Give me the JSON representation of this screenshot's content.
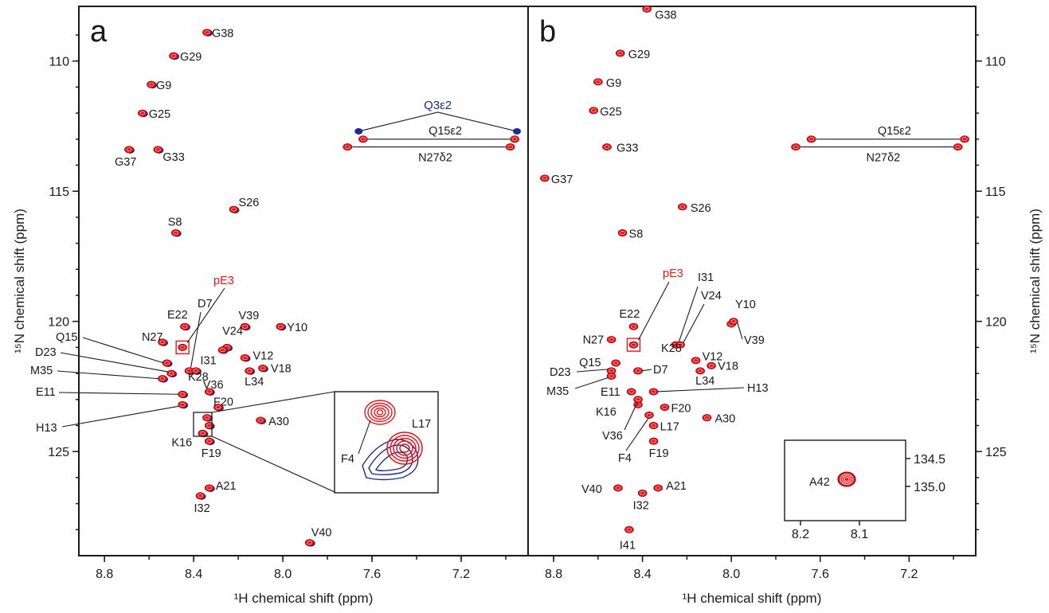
{
  "chart_data": [
    {
      "type": "scatter",
      "panel_label": "a",
      "xlabel": "¹H chemical shift (ppm)",
      "ylabel": "¹⁵N chemical shift (ppm)",
      "x_ticks": [
        "8.8",
        "8.4",
        "8.0",
        "7.6",
        "7.2"
      ],
      "y_ticks": [
        "110",
        "115",
        "120",
        "125"
      ],
      "xlim": [
        8.915,
        6.9
      ],
      "ylim": [
        107.9,
        129.0
      ],
      "colors": {
        "red": "#e8161b",
        "blue": "#1d2b8f"
      },
      "peaks": [
        {
          "label": "G38",
          "x": 8.34,
          "y": 108.9
        },
        {
          "label": "G29",
          "x": 8.49,
          "y": 109.8
        },
        {
          "label": "G9",
          "x": 8.59,
          "y": 110.9
        },
        {
          "label": "G25",
          "x": 8.63,
          "y": 112.0
        },
        {
          "label": "G37",
          "x": 8.69,
          "y": 113.4
        },
        {
          "label": "G33",
          "x": 8.56,
          "y": 113.4
        },
        {
          "label": "S26",
          "x": 8.22,
          "y": 115.7
        },
        {
          "label": "S8",
          "x": 8.48,
          "y": 116.6
        },
        {
          "label": "E22",
          "x": 8.44,
          "y": 120.2
        },
        {
          "label": "N27",
          "x": 8.54,
          "y": 120.8
        },
        {
          "label": "pE3",
          "x": 8.45,
          "y": 121.0
        },
        {
          "label": "D7",
          "x": 8.42,
          "y": 121.9
        },
        {
          "label": "V39",
          "x": 8.17,
          "y": 120.2
        },
        {
          "label": "Y10",
          "x": 8.01,
          "y": 120.2
        },
        {
          "label": "V24",
          "x": 8.25,
          "y": 121.0
        },
        {
          "label": "I31",
          "x": 8.27,
          "y": 121.1
        },
        {
          "label": "V12",
          "x": 8.17,
          "y": 121.4
        },
        {
          "label": "V18",
          "x": 8.09,
          "y": 121.8
        },
        {
          "label": "L34",
          "x": 8.15,
          "y": 121.9
        },
        {
          "label": "D23",
          "x": 8.5,
          "y": 122.0
        },
        {
          "label": "Q15",
          "x": 8.52,
          "y": 121.6
        },
        {
          "label": "M35",
          "x": 8.54,
          "y": 122.2
        },
        {
          "label": "K28",
          "x": 8.39,
          "y": 121.9
        },
        {
          "label": "E11",
          "x": 8.45,
          "y": 122.8
        },
        {
          "label": "V36",
          "x": 8.33,
          "y": 122.7
        },
        {
          "label": "F20",
          "x": 8.29,
          "y": 123.3
        },
        {
          "label": "H13",
          "x": 8.45,
          "y": 123.2
        },
        {
          "label": "K16",
          "x": 8.36,
          "y": 124.3
        },
        {
          "label": "F4",
          "x": 8.34,
          "y": 123.7
        },
        {
          "label": "L17",
          "x": 8.33,
          "y": 124.0
        },
        {
          "label": "A30",
          "x": 8.1,
          "y": 123.8
        },
        {
          "label": "F19",
          "x": 8.33,
          "y": 124.6
        },
        {
          "label": "A21",
          "x": 8.33,
          "y": 126.4
        },
        {
          "label": "I32",
          "x": 8.37,
          "y": 126.7
        },
        {
          "label": "V40",
          "x": 7.88,
          "y": 128.5
        }
      ],
      "sidechain_peaks": [
        {
          "label": "Q3ε2",
          "x": [
            7.66,
            6.95
          ],
          "y": [
            112.7,
            112.7
          ],
          "color": "blue"
        },
        {
          "label": "Q15ε2",
          "x": [
            7.64,
            6.96
          ],
          "y": [
            113.0,
            113.0
          ],
          "color": "red"
        },
        {
          "label": "N27δ2",
          "x": [
            7.71,
            6.98
          ],
          "y": [
            113.3,
            113.3
          ],
          "color": "red"
        }
      ],
      "inset_labels": [
        "F4",
        "L17"
      ]
    },
    {
      "type": "scatter",
      "panel_label": "b",
      "xlabel": "¹H chemical shift (ppm)",
      "ylabel": "¹⁵N chemical shift (ppm)",
      "x_ticks": [
        "8.8",
        "8.4",
        "8.0",
        "7.6",
        "7.2"
      ],
      "y_ticks": [
        "110",
        "115",
        "120",
        "125"
      ],
      "xlim": [
        8.915,
        6.9
      ],
      "ylim": [
        107.9,
        129.0
      ],
      "peaks": [
        {
          "label": "G38",
          "x": 8.38,
          "y": 108.0
        },
        {
          "label": "G29",
          "x": 8.5,
          "y": 109.7
        },
        {
          "label": "G9",
          "x": 8.6,
          "y": 110.8
        },
        {
          "label": "G25",
          "x": 8.62,
          "y": 111.9
        },
        {
          "label": "G33",
          "x": 8.56,
          "y": 113.3
        },
        {
          "label": "G37",
          "x": 8.84,
          "y": 114.5
        },
        {
          "label": "S26",
          "x": 8.22,
          "y": 115.6
        },
        {
          "label": "S8",
          "x": 8.49,
          "y": 116.6
        },
        {
          "label": "E22",
          "x": 8.44,
          "y": 120.2
        },
        {
          "label": "N27",
          "x": 8.54,
          "y": 120.7
        },
        {
          "label": "pE3",
          "x": 8.44,
          "y": 120.9
        },
        {
          "label": "K28",
          "x": 8.42,
          "y": 121.9
        },
        {
          "label": "I31",
          "x": 8.25,
          "y": 120.9
        },
        {
          "label": "V24",
          "x": 8.23,
          "y": 120.9
        },
        {
          "label": "Y10",
          "x": 8.0,
          "y": 120.1
        },
        {
          "label": "V39",
          "x": 7.99,
          "y": 120.0
        },
        {
          "label": "V12",
          "x": 8.16,
          "y": 121.5
        },
        {
          "label": "V18",
          "x": 8.09,
          "y": 121.7
        },
        {
          "label": "L34",
          "x": 8.14,
          "y": 121.9
        },
        {
          "label": "Q15",
          "x": 8.52,
          "y": 121.6
        },
        {
          "label": "D23",
          "x": 8.54,
          "y": 121.9
        },
        {
          "label": "M35",
          "x": 8.54,
          "y": 122.1
        },
        {
          "label": "D7",
          "x": 8.42,
          "y": 121.9
        },
        {
          "label": "H13",
          "x": 8.35,
          "y": 122.7
        },
        {
          "label": "E11",
          "x": 8.45,
          "y": 122.7
        },
        {
          "label": "K16",
          "x": 8.42,
          "y": 123.2
        },
        {
          "label": "F20",
          "x": 8.3,
          "y": 123.3
        },
        {
          "label": "V36",
          "x": 8.42,
          "y": 123.0
        },
        {
          "label": "F4",
          "x": 8.37,
          "y": 123.6
        },
        {
          "label": "L17",
          "x": 8.35,
          "y": 124.0
        },
        {
          "label": "A30",
          "x": 8.11,
          "y": 123.7
        },
        {
          "label": "F19",
          "x": 8.35,
          "y": 124.6
        },
        {
          "label": "V40",
          "x": 8.51,
          "y": 126.4
        },
        {
          "label": "A21",
          "x": 8.33,
          "y": 126.4
        },
        {
          "label": "I32",
          "x": 8.4,
          "y": 126.6
        },
        {
          "label": "I41",
          "x": 8.46,
          "y": 128.0
        }
      ],
      "sidechain_peaks": [
        {
          "label": "Q15ε2",
          "x": [
            7.64,
            6.95
          ],
          "y": [
            113.0,
            113.0
          ],
          "color": "red"
        },
        {
          "label": "N27δ2",
          "x": [
            7.71,
            6.98
          ],
          "y": [
            113.3,
            113.3
          ],
          "color": "red"
        }
      ],
      "inset": {
        "label": "A42",
        "x_ticks": [
          "8.2",
          "8.1"
        ],
        "y_ticks": [
          "134.5",
          "135.0"
        ],
        "peak": {
          "x": 8.11,
          "y": 134.9
        }
      }
    }
  ]
}
